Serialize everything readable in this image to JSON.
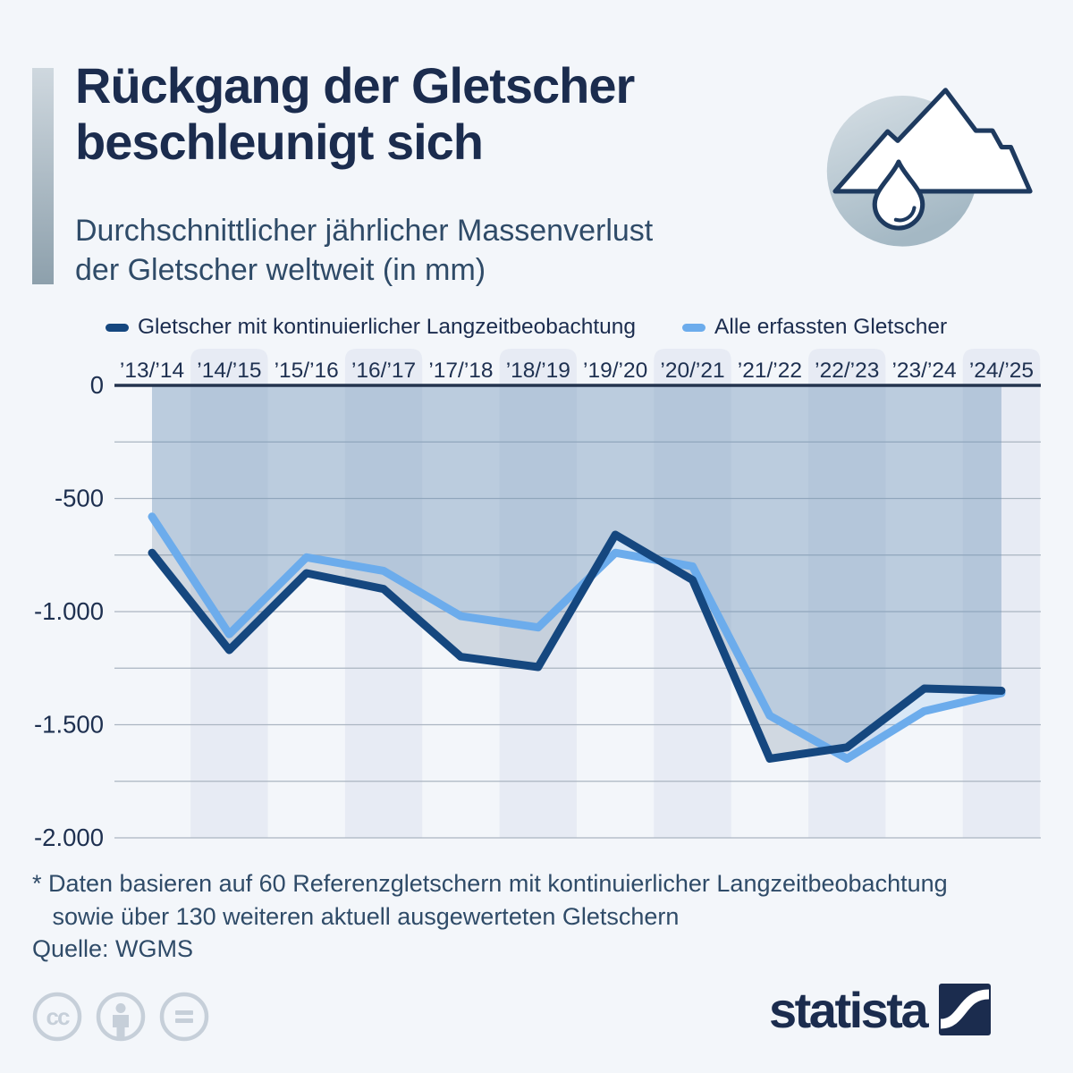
{
  "header": {
    "title": "Rückgang der Gletscher\nbeschleunigt sich",
    "subtitle": "Durchschnittlicher jährlicher Massenverlust\nder Gletscher weltweit (in mm)"
  },
  "icons": {
    "badge": "glacier-mountain-with-meltwater-drop",
    "license": [
      "cc-icon",
      "attribution-person-icon",
      "no-derivatives-equals-icon"
    ]
  },
  "legend": [
    {
      "label": "Gletscher mit kontinuierlicher Langzeitbeobachtung",
      "color": "#15477F"
    },
    {
      "label": "Alle erfassten Gletscher",
      "color": "#6CACEC"
    }
  ],
  "chart_data": {
    "type": "line",
    "title": "Durchschnittlicher jährlicher Massenverlust der Gletscher weltweit (in mm)",
    "categories": [
      "’13/’14",
      "’14/’15",
      "’15/’16",
      "’16/’17",
      "’17/’18",
      "’18/’19",
      "’19/’20",
      "’20/’21",
      "’21/’22",
      "’22/’23",
      "’23/’24",
      "’24/’25"
    ],
    "series": [
      {
        "name": "Gletscher mit kontinuierlicher Langzeitbeobachtung",
        "color": "#15477F",
        "values": [
          -740,
          -1170,
          -830,
          -900,
          -1200,
          -1245,
          -660,
          -860,
          -1650,
          -1600,
          -1340,
          -1350
        ]
      },
      {
        "name": "Alle erfassten Gletscher",
        "color": "#6CACEC",
        "values": [
          -580,
          -1100,
          -760,
          -820,
          -1020,
          -1070,
          -740,
          -800,
          -1460,
          -1650,
          -1440,
          -1360
        ]
      }
    ],
    "ylim": [
      -2000,
      0
    ],
    "yticks": [
      0,
      -250,
      -500,
      -750,
      -1000,
      -1250,
      -1500,
      -1750,
      -2000
    ],
    "ytick_labels": {
      "0": "0",
      "-500": "-500",
      "-1000": "-1.000",
      "-1500": "-1.500",
      "-2000": "-2.000"
    },
    "grid": true,
    "legend_position": "top",
    "area_fill": true,
    "theme": {
      "band_color": "#e7ebf4",
      "grid_color": "#aab5c1",
      "axis_color": "#24344e",
      "label_color": "#1e3050",
      "area_dark": "rgba(96,120,146,0.24)",
      "area_light": "rgba(125,178,232,0.22)"
    }
  },
  "footnote": "* Daten basieren auf 60 Referenzgletschern mit kontinuierlicher Langzeitbeobachtung\n   sowie über 130 weiteren aktuell ausgewerteten Gletschern",
  "source": "Quelle: WGMS",
  "branding": {
    "logo_text": "statista"
  }
}
